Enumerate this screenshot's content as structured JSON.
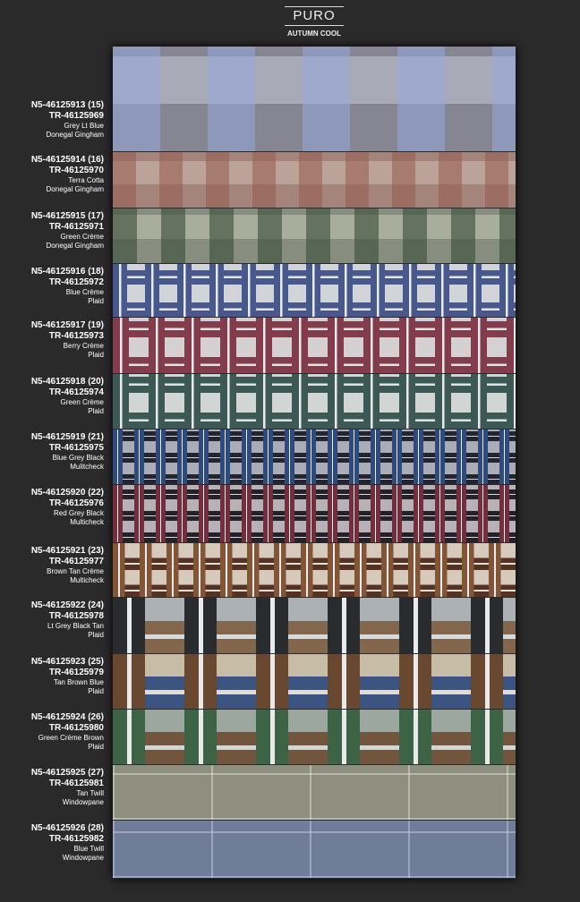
{
  "header": {
    "title": "PURO",
    "subtitle": "AUTUMN COOL"
  },
  "items": [
    {
      "code": "N5-46125913 (15)",
      "ref": "TR-46125969",
      "color": "Grey Lt Blue",
      "pattern": "Donegal Gingham"
    },
    {
      "code": "N5-46125914 (16)",
      "ref": "TR-46125970",
      "color": "Terra Cotta",
      "pattern": "Donegal Gingham"
    },
    {
      "code": "N5-46125915 (17)",
      "ref": "TR-46125971",
      "color": "Green Crème",
      "pattern": "Donegal Gingham"
    },
    {
      "code": "N5-46125916 (18)",
      "ref": "TR-46125972",
      "color": "Blue Crème",
      "pattern": "Plaid"
    },
    {
      "code": "N5-46125917 (19)",
      "ref": "TR-46125973",
      "color": "Berry Crème",
      "pattern": "Plaid"
    },
    {
      "code": "N5-46125918 (20)",
      "ref": "TR-46125974",
      "color": "Green Crème",
      "pattern": "Plaid"
    },
    {
      "code": "N5-46125919 (21)",
      "ref": "TR-46125975",
      "color": "Blue Grey Black",
      "pattern": "Mulitcheck"
    },
    {
      "code": "N5-46125920 (22)",
      "ref": "TR-46125976",
      "color": "Red Grey Black",
      "pattern": "Multicheck"
    },
    {
      "code": "N5-46125921 (23)",
      "ref": "TR-46125977",
      "color": "Brown Tan Crème",
      "pattern": "Multicheck"
    },
    {
      "code": "N5-46125922 (24)",
      "ref": "TR-46125978",
      "color": "Lt Grey Black Tan",
      "pattern": "Plaid"
    },
    {
      "code": "N5-46125923 (25)",
      "ref": "TR-46125979",
      "color": "Tan Brown Blue",
      "pattern": "Plaid"
    },
    {
      "code": "N5-46125924 (26)",
      "ref": "TR-46125980",
      "color": "Green Crème Brown",
      "pattern": "Plaid"
    },
    {
      "code": "N5-46125925 (27)",
      "ref": "TR-46125981",
      "color": "Tan Twill",
      "pattern": "Windowpane"
    },
    {
      "code": "N5-46125926 (28)",
      "ref": "TR-46125982",
      "color": "Blue Twill",
      "pattern": "Windowpane"
    }
  ]
}
